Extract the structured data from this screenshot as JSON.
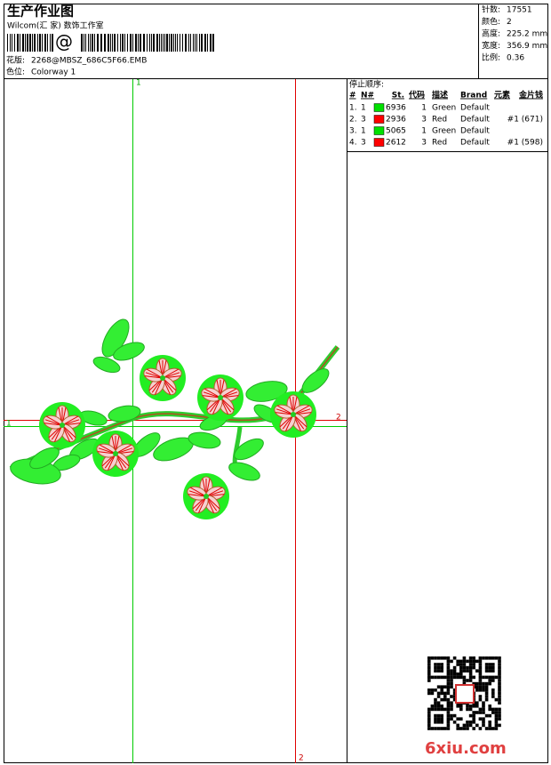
{
  "header": {
    "title": "生产作业图",
    "studio": "Wilcom(汇 家) 数饰工作室",
    "barcode_symbol": "@",
    "design_label": "花版:",
    "design_file": "2268@MBSZ_686C5F66.EMB",
    "colorway_label": "色位:",
    "colorway": "Colorway 1"
  },
  "stats": [
    {
      "label": "针数:",
      "value": "17551"
    },
    {
      "label": "颜色:",
      "value": "2"
    },
    {
      "label": "高度:",
      "value": "225.2 mm"
    },
    {
      "label": "宽度:",
      "value": "356.9 mm"
    },
    {
      "label": "比例:",
      "value": "0.36"
    }
  ],
  "stop_sequence": {
    "title": "停止顺序:",
    "columns": [
      "#",
      "N#",
      "St.",
      "代码",
      "描述",
      "Brand",
      "元素",
      "金片钱"
    ],
    "rows": [
      {
        "index": "1.",
        "needle": "1",
        "color": "#00e000",
        "code": "6936",
        "st": "1",
        "desc": "Green",
        "brand": "Default"
      },
      {
        "index": "2.",
        "needle": "3",
        "color": "#ff0000",
        "code": "2936",
        "st": "3",
        "desc": "Red",
        "brand": "Default",
        "element": "#1 (671)"
      },
      {
        "index": "3.",
        "needle": "1",
        "color": "#00e000",
        "code": "5065",
        "st": "1",
        "desc": "Green",
        "brand": "Default"
      },
      {
        "index": "4.",
        "needle": "3",
        "color": "#ff0000",
        "code": "2612",
        "st": "3",
        "desc": "Red",
        "brand": "Default",
        "element": "#1 (598)"
      }
    ]
  },
  "guides": {
    "top": "1",
    "bottom": "2",
    "left": "1",
    "right": "2"
  },
  "watermark": "6xiu.com"
}
